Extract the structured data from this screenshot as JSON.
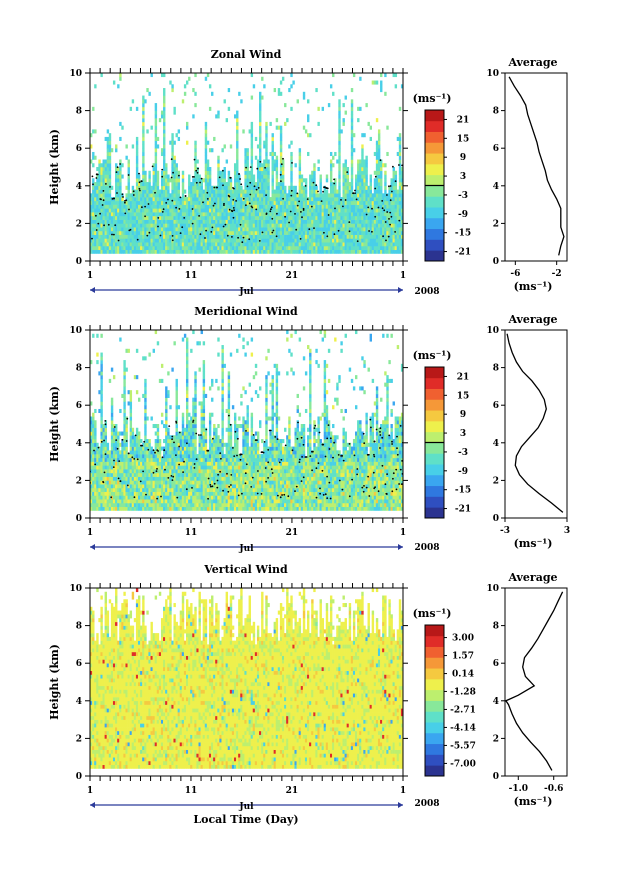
{
  "figure": {
    "x_title": "Local Time (Day)",
    "month_label": "Jul",
    "year_label": "2008",
    "date_ticks": [
      "1",
      "11",
      "21",
      "1"
    ]
  },
  "colors": {
    "scale": [
      "#2b3390",
      "#2f4fc0",
      "#2f78e0",
      "#3aa6f0",
      "#48cfe8",
      "#5fe0c8",
      "#88e89a",
      "#bdef6e",
      "#eef04c",
      "#f5c940",
      "#f59838",
      "#f06030",
      "#e02c28",
      "#b81818"
    ],
    "contour": "#000000",
    "profile": "#000000"
  },
  "chart_data": [
    {
      "type": "heatmap",
      "title": "Zonal Wind",
      "ylabel": "Height (km)",
      "ylim": [
        0,
        10
      ],
      "yticks": [
        "0",
        "2",
        "4",
        "6",
        "8",
        "10"
      ],
      "colorbar_unit": "(ms⁻¹)",
      "colorbar_ticks": [
        "-21",
        "-15",
        "-9",
        "-3",
        "3",
        "9",
        "15",
        "21"
      ],
      "colorbar_range": [
        -24,
        24
      ],
      "profile": {
        "title": "Average",
        "xlabel": "(ms⁻¹)",
        "xticks": [
          "-6",
          "-2"
        ],
        "xlim": [
          -7,
          -1
        ],
        "xtick_values": [
          -6,
          -2
        ],
        "height": [
          0.3,
          0.8,
          1.3,
          1.8,
          2.3,
          2.8,
          3.3,
          3.8,
          4.3,
          4.8,
          5.3,
          5.8,
          6.3,
          6.8,
          7.3,
          7.8,
          8.3,
          8.8,
          9.3,
          9.8
        ],
        "value": [
          -1.8,
          -1.6,
          -1.3,
          -1.6,
          -1.6,
          -1.6,
          -2.0,
          -2.5,
          -2.9,
          -3.1,
          -3.4,
          -3.7,
          -3.9,
          -4.2,
          -4.5,
          -4.8,
          -5.0,
          -5.5,
          -6.1,
          -6.6
        ]
      }
    },
    {
      "type": "heatmap",
      "title": "Meridional Wind",
      "ylabel": "Height (km)",
      "ylim": [
        0,
        10
      ],
      "yticks": [
        "0",
        "2",
        "4",
        "6",
        "8",
        "10"
      ],
      "colorbar_unit": "(ms⁻¹)",
      "colorbar_ticks": [
        "-21",
        "-15",
        "-9",
        "-3",
        "3",
        "9",
        "15",
        "21"
      ],
      "colorbar_range": [
        -24,
        24
      ],
      "profile": {
        "title": "Average",
        "xlabel": "(ms⁻¹)",
        "xticks": [
          "-3",
          "3"
        ],
        "xlim": [
          -3,
          3
        ],
        "xtick_values": [
          -3,
          3
        ],
        "height": [
          0.3,
          0.8,
          1.3,
          1.8,
          2.3,
          2.8,
          3.3,
          3.8,
          4.3,
          4.8,
          5.3,
          5.8,
          6.3,
          6.8,
          7.3,
          7.8,
          8.3,
          8.8,
          9.3,
          9.8
        ],
        "value": [
          2.6,
          1.5,
          0.3,
          -0.8,
          -1.6,
          -2.0,
          -1.9,
          -1.4,
          -0.6,
          0.2,
          0.7,
          1.0,
          0.8,
          0.3,
          -0.4,
          -1.3,
          -1.9,
          -2.3,
          -2.6,
          -2.8
        ]
      }
    },
    {
      "type": "heatmap",
      "title": "Vertical Wind",
      "ylabel": "Height (km)",
      "ylim": [
        0,
        10
      ],
      "yticks": [
        "0",
        "2",
        "4",
        "6",
        "8",
        "10"
      ],
      "colorbar_unit": "(ms⁻¹)",
      "colorbar_ticks": [
        "-7.00",
        "-5.57",
        "-4.14",
        "-2.71",
        "-1.28",
        "0.14",
        "1.57",
        "3.00"
      ],
      "colorbar_range": [
        -8,
        4
      ],
      "profile": {
        "title": "Average",
        "xlabel": "(ms⁻¹)",
        "xticks": [
          "-1.0",
          "-0.6"
        ],
        "xlim": [
          -1.15,
          -0.45
        ],
        "xtick_values": [
          -1.0,
          -0.6
        ],
        "height": [
          0.3,
          0.8,
          1.3,
          1.8,
          2.3,
          2.8,
          3.3,
          3.8,
          4.0,
          4.3,
          4.8,
          5.3,
          5.8,
          6.3,
          6.8,
          7.3,
          7.8,
          8.3,
          8.8,
          9.3,
          9.8
        ],
        "value": [
          -0.62,
          -0.68,
          -0.76,
          -0.86,
          -0.95,
          -1.02,
          -1.07,
          -1.11,
          -1.14,
          -1.0,
          -0.82,
          -0.92,
          -0.95,
          -0.93,
          -0.85,
          -0.78,
          -0.72,
          -0.66,
          -0.6,
          -0.55,
          -0.5
        ]
      }
    }
  ]
}
